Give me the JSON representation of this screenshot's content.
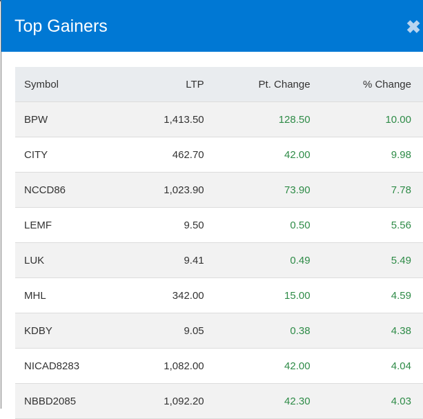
{
  "modal": {
    "title": "Top Gainers",
    "close_icon": "close-icon"
  },
  "table": {
    "headers": [
      "Symbol",
      "LTP",
      "Pt. Change",
      "% Change"
    ],
    "rows": [
      {
        "symbol": "BPW",
        "ltp": "1,413.50",
        "pt": "128.50",
        "pct": "10.00"
      },
      {
        "symbol": "CITY",
        "ltp": "462.70",
        "pt": "42.00",
        "pct": "9.98"
      },
      {
        "symbol": "NCCD86",
        "ltp": "1,023.90",
        "pt": "73.90",
        "pct": "7.78"
      },
      {
        "symbol": "LEMF",
        "ltp": "9.50",
        "pt": "0.50",
        "pct": "5.56"
      },
      {
        "symbol": "LUK",
        "ltp": "9.41",
        "pt": "0.49",
        "pct": "5.49"
      },
      {
        "symbol": "MHL",
        "ltp": "342.00",
        "pt": "15.00",
        "pct": "4.59"
      },
      {
        "symbol": "KDBY",
        "ltp": "9.05",
        "pt": "0.38",
        "pct": "4.38"
      },
      {
        "symbol": "NICAD8283",
        "ltp": "1,082.00",
        "pt": "42.00",
        "pct": "4.04"
      },
      {
        "symbol": "NBBD2085",
        "ltp": "1,092.20",
        "pt": "42.30",
        "pct": "4.03"
      }
    ]
  },
  "colors": {
    "header_bg": "#0078d4",
    "gain": "#2e8b47"
  }
}
